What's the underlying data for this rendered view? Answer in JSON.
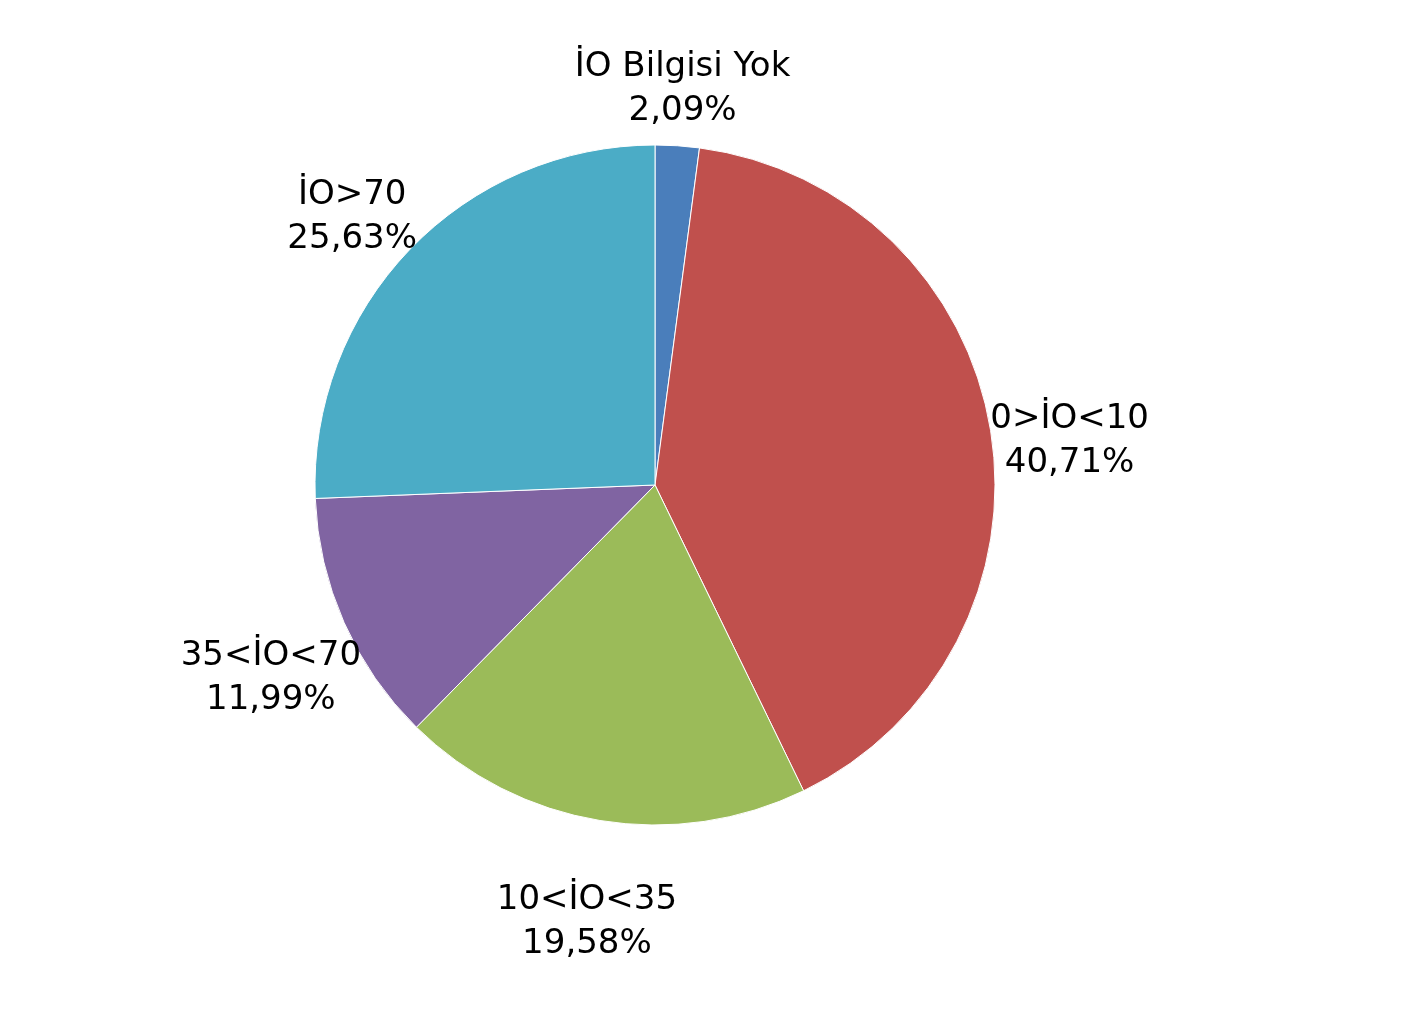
{
  "chart_data": {
    "type": "pie",
    "categories": [
      "İO Bilgisi Yok",
      "0>İO<10",
      "10<İO<35",
      "35<İO<70",
      "İO>70"
    ],
    "values": [
      2.09,
      40.71,
      19.58,
      11.99,
      25.63
    ],
    "value_labels": [
      "2,09%",
      "40,71%",
      "19,58%",
      "11,99%",
      "25,63%"
    ],
    "colors": [
      "#4a7ebb",
      "#c0504d",
      "#9bbb59",
      "#8064a2",
      "#4bacc6"
    ],
    "legend": false
  }
}
